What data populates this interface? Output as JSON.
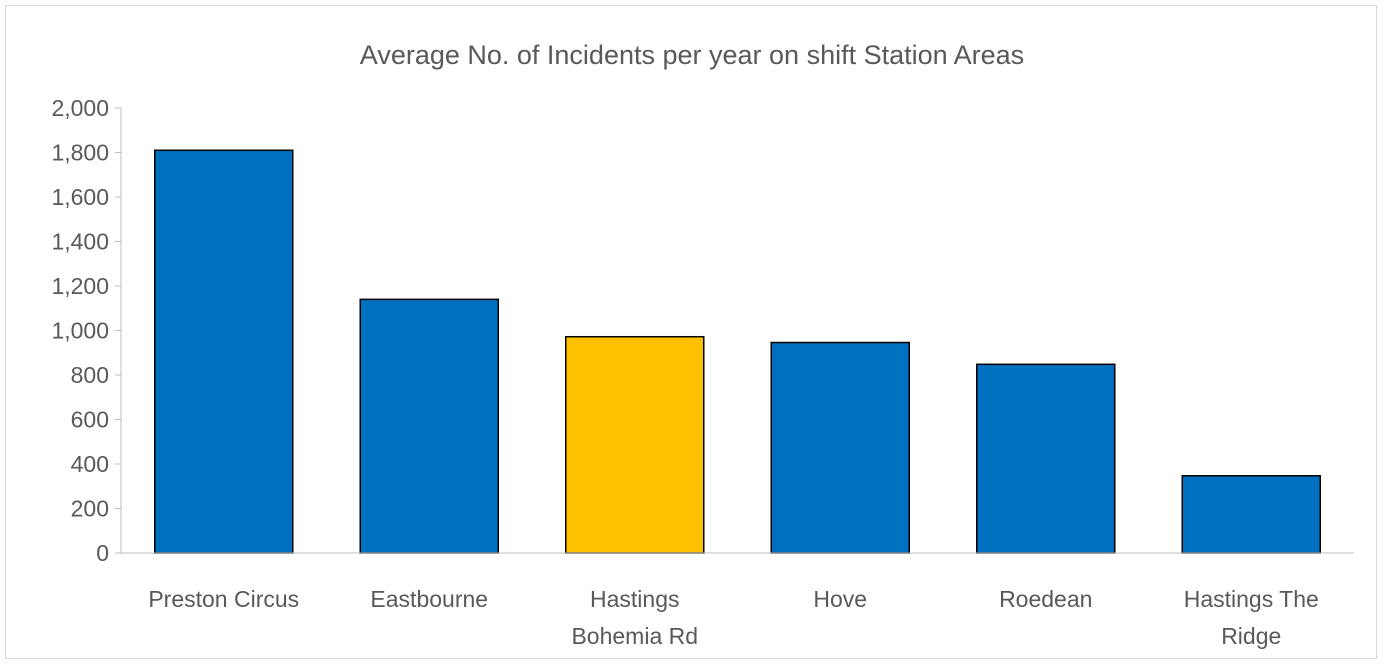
{
  "chart_data": {
    "type": "bar",
    "title": "Average No. of Incidents per year on shift Station Areas",
    "categories": [
      "Preston Circus",
      "Eastbourne",
      "Hastings Bohemia Rd",
      "Hove",
      "Roedean",
      "Hastings The Ridge"
    ],
    "category_label_lines": [
      [
        "Preston Circus"
      ],
      [
        "Eastbourne"
      ],
      [
        "Hastings",
        "Bohemia Rd"
      ],
      [
        "Hove"
      ],
      [
        "Roedean"
      ],
      [
        "Hastings The",
        "Ridge"
      ]
    ],
    "values": [
      1810,
      1140,
      972,
      946,
      848,
      347
    ],
    "bar_colors": [
      "#0070c0",
      "#0070c0",
      "#ffc000",
      "#0070c0",
      "#0070c0",
      "#0070c0"
    ],
    "ylim": [
      0,
      2000
    ],
    "yticks": [
      0,
      200,
      400,
      600,
      800,
      1000,
      1200,
      1400,
      1600,
      1800,
      2000
    ],
    "ytick_labels": [
      "0",
      "200",
      "400",
      "600",
      "800",
      "1,000",
      "1,200",
      "1,400",
      "1,600",
      "1,800",
      "2,000"
    ],
    "xlabel": "",
    "ylabel": "",
    "grid": false,
    "legend": "none"
  },
  "colors": {
    "primary_bar": "#0070c0",
    "highlight_bar": "#ffc000",
    "text": "#595959",
    "axis": "#bfbfbf"
  }
}
